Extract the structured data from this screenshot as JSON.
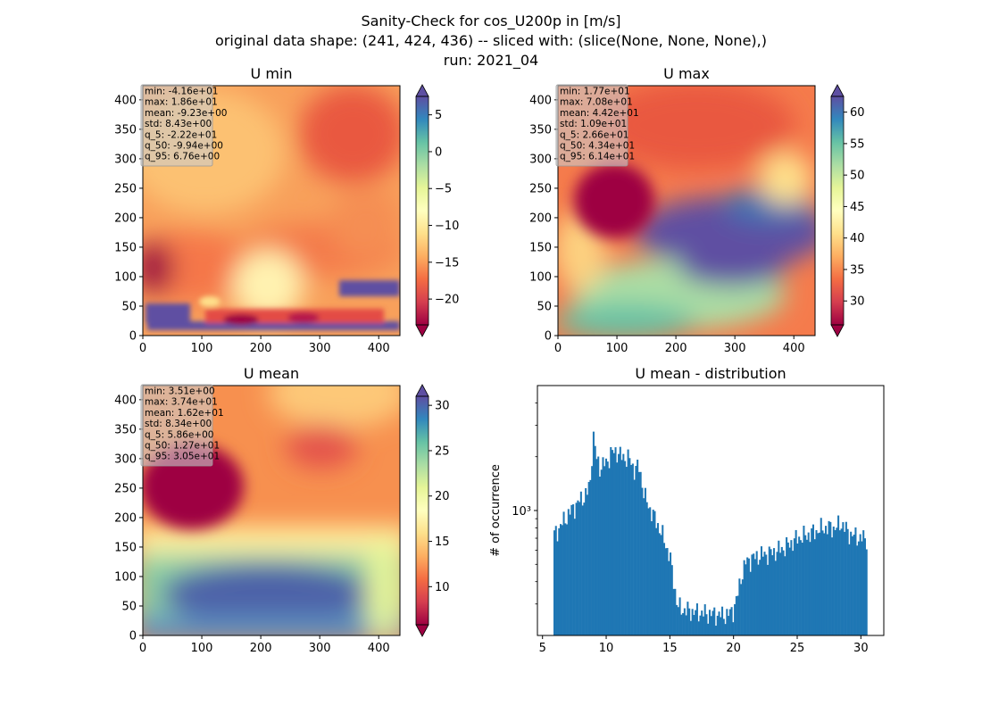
{
  "figure": {
    "title_lines": [
      "Sanity-Check for cos_U200p in [m/s]",
      "original data shape: (241, 424, 436) -- sliced with: (slice(None, None, None),)",
      "run: 2021_04"
    ]
  },
  "colors": {
    "spectral": [
      "#9e0142",
      "#d53e4f",
      "#f46d43",
      "#fdae61",
      "#fee08b",
      "#ffffbf",
      "#e6f598",
      "#abdda4",
      "#66c2a5",
      "#3288bd",
      "#5e4fa2"
    ],
    "bar": "#1f77b4",
    "stats_box": "#cccccc"
  },
  "chart_data": [
    {
      "type": "heatmap",
      "title": "U min",
      "xlim": [
        0,
        436
      ],
      "ylim": [
        0,
        424
      ],
      "xticks": [
        0,
        100,
        200,
        300,
        400
      ],
      "yticks": [
        0,
        50,
        100,
        150,
        200,
        250,
        300,
        350,
        400
      ],
      "colorbar": {
        "vmin": -23.5,
        "vmax": 7.5,
        "ticks": [
          5,
          0,
          -5,
          -10,
          -15,
          -20
        ],
        "tick_labels": [
          "5",
          "0",
          "−5",
          "−10",
          "−15",
          "−20"
        ],
        "extend": "both"
      },
      "stats": [
        "min: -4.16e+01",
        "max: 1.86e+01",
        "mean: -9.23e+00",
        "std: 8.43e+00",
        "q_5: -2.22e+01",
        "q_50: -9.94e+00",
        "q_95: 6.76e+00"
      ]
    },
    {
      "type": "heatmap",
      "title": "U max",
      "xlim": [
        0,
        436
      ],
      "ylim": [
        0,
        424
      ],
      "xticks": [
        0,
        100,
        200,
        300,
        400
      ],
      "yticks": [
        0,
        50,
        100,
        150,
        200,
        250,
        300,
        350,
        400
      ],
      "colorbar": {
        "vmin": 26.2,
        "vmax": 62.5,
        "ticks": [
          60,
          55,
          50,
          45,
          40,
          35,
          30
        ],
        "tick_labels": [
          "60",
          "55",
          "50",
          "45",
          "40",
          "35",
          "30"
        ],
        "extend": "both"
      },
      "stats": [
        "min: 1.77e+01",
        "max: 7.08e+01",
        "mean: 4.42e+01",
        "std: 1.09e+01",
        "q_5: 2.66e+01",
        "q_50: 4.34e+01",
        "q_95: 6.14e+01"
      ]
    },
    {
      "type": "heatmap",
      "title": "U mean",
      "xlim": [
        0,
        436
      ],
      "ylim": [
        0,
        424
      ],
      "xticks": [
        0,
        100,
        200,
        300,
        400
      ],
      "yticks": [
        0,
        50,
        100,
        150,
        200,
        250,
        300,
        350,
        400
      ],
      "colorbar": {
        "vmin": 5.8,
        "vmax": 31.0,
        "ticks": [
          30,
          25,
          20,
          15,
          10
        ],
        "tick_labels": [
          "30",
          "25",
          "20",
          "15",
          "10"
        ],
        "extend": "both"
      },
      "stats": [
        "min: 3.51e+00",
        "max: 3.74e+01",
        "mean: 1.62e+01",
        "std: 8.34e+00",
        "q_5: 5.86e+00",
        "q_50: 1.27e+01",
        "q_95: 3.05e+01"
      ]
    },
    {
      "type": "bar",
      "title": "U mean - distribution",
      "ylabel": "# of occurrence",
      "yscale": "log",
      "xlim": [
        4.6,
        31.8
      ],
      "ylim": [
        200,
        5000
      ],
      "xticks": [
        5,
        10,
        15,
        20,
        25,
        30
      ],
      "ytick_major": {
        "value": 1000,
        "label": "10³"
      },
      "bin_range": [
        5.86,
        30.5
      ],
      "profile_x": [
        5.86,
        6.3,
        7.0,
        7.5,
        8.0,
        8.5,
        8.8,
        8.95,
        9.2,
        9.5,
        10.0,
        10.4,
        10.8,
        11.2,
        11.8,
        12.2,
        12.6,
        13.0,
        13.5,
        14.0,
        14.5,
        15.0,
        15.3,
        15.6,
        16.0,
        17.0,
        18.0,
        19.0,
        19.6,
        20.0,
        20.3,
        20.6,
        21.0,
        21.5,
        22.0,
        23.0,
        24.0,
        25.0,
        26.0,
        27.0,
        28.0,
        28.5,
        29.0,
        29.5,
        30.0,
        30.5
      ],
      "profile_y": [
        720,
        800,
        950,
        1050,
        1150,
        1250,
        1500,
        2800,
        2000,
        1750,
        1850,
        2100,
        2150,
        2000,
        1950,
        1700,
        1750,
        1200,
        1000,
        850,
        700,
        550,
        400,
        290,
        280,
        270,
        265,
        260,
        262,
        280,
        330,
        430,
        520,
        540,
        560,
        580,
        620,
        700,
        740,
        800,
        800,
        850,
        750,
        720,
        700,
        700
      ]
    }
  ]
}
